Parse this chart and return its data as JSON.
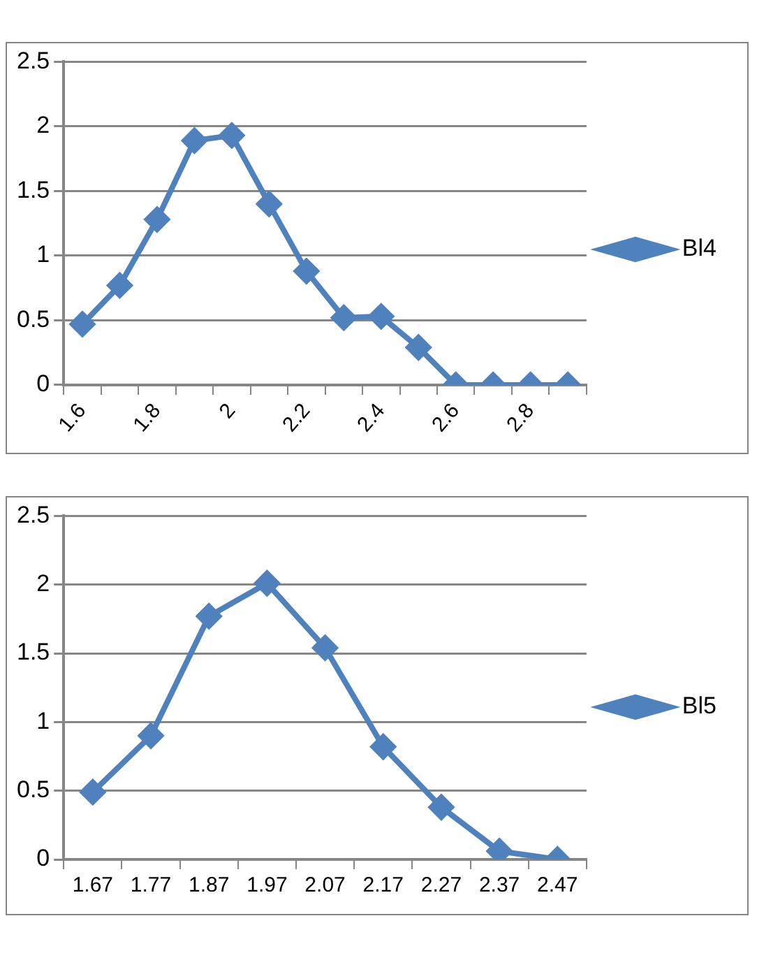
{
  "chart_data": [
    {
      "type": "line",
      "categories": [
        "1.6",
        null,
        "1.8",
        null,
        "2",
        null,
        "2.2",
        null,
        "2.4",
        null,
        "2.6",
        null,
        "2.8",
        null
      ],
      "series": [
        {
          "name": "Bl4",
          "color": "#4f81bd",
          "values": [
            0.47,
            0.77,
            1.28,
            1.89,
            1.93,
            1.4,
            0.88,
            0.52,
            0.53,
            0.29,
            0,
            0,
            0,
            0
          ]
        }
      ],
      "ylim": [
        0,
        2.5
      ],
      "yticks": [
        0,
        0.5,
        1,
        1.5,
        2,
        2.5
      ],
      "grid": "y",
      "legend": "right",
      "marker": "diamond",
      "line_style": "solid"
    },
    {
      "type": "line",
      "categories": [
        "1.67",
        "1.77",
        "1.87",
        "1.97",
        "2.07",
        "2.17",
        "2.27",
        "2.37",
        "2.47"
      ],
      "series": [
        {
          "name": "Bl5",
          "color": "#4f81bd",
          "values": [
            0.49,
            0.9,
            1.77,
            2.01,
            1.54,
            0.82,
            0.38,
            0.06,
            0
          ]
        }
      ],
      "ylim": [
        0,
        2.5
      ],
      "yticks": [
        0,
        0.5,
        1,
        1.5,
        2,
        2.5
      ],
      "grid": "y",
      "legend": "right",
      "marker": "diamond",
      "line_style": "solid"
    }
  ]
}
